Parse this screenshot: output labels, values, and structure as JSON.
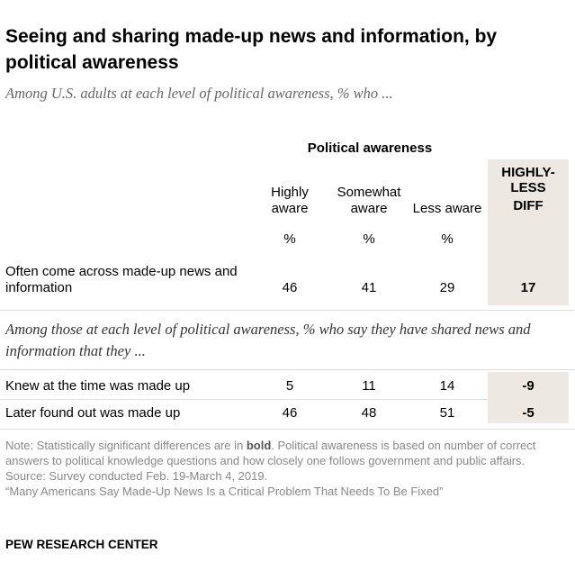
{
  "chart_data": {
    "type": "table",
    "title": "Seeing and sharing made-up news and information, by political awareness",
    "subtitle": "Among U.S. adults at each level of political awareness, % who ...",
    "group_header": "Political awareness",
    "columns": [
      "Highly aware",
      "Somewhat aware",
      "Less aware"
    ],
    "column_units": [
      "%",
      "%",
      "%"
    ],
    "diff_header": [
      "HIGHLY-",
      "LESS",
      "DIFF"
    ],
    "rows": [
      {
        "label": "Often come across made-up news and information",
        "values": [
          "46",
          "41",
          "29"
        ],
        "diff": "17"
      }
    ],
    "section2": "Among those at each level of political awareness, % who say they have shared news and information that they ...",
    "rows2": [
      {
        "label": "Knew at the time was made up",
        "values": [
          "5",
          "11",
          "14"
        ],
        "diff": "-9"
      },
      {
        "label": "Later found out was made up",
        "values": [
          "46",
          "48",
          "51"
        ],
        "diff": "-5"
      }
    ],
    "shade_color": "#ede9e2"
  },
  "notes": {
    "note_prefix": "Note: Statistically significant differences are in ",
    "note_bold": "bold",
    "note_rest": ". Political awareness is based on number of correct answers to political knowledge questions and how closely one follows government and public affairs.",
    "source": "Source: Survey conducted Feb. 19-March 4, 2019.",
    "report": "“Many Americans Say Made-Up News Is a Critical Problem That Needs To Be Fixed”",
    "brand": "PEW RESEARCH CENTER"
  }
}
